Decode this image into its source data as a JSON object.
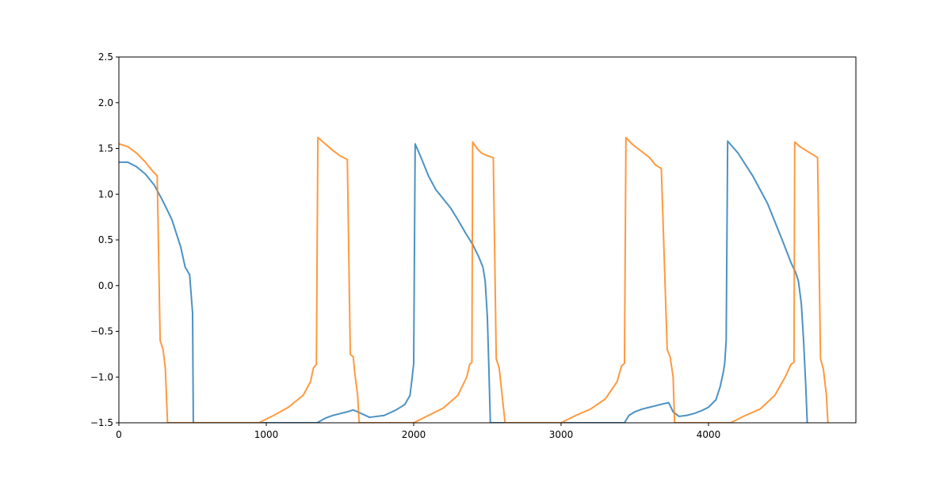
{
  "chart_data": {
    "type": "line",
    "title": "",
    "xlabel": "",
    "ylabel": "",
    "xlim": [
      0,
      5000
    ],
    "ylim": [
      -1.5,
      2.5
    ],
    "x_ticks": [
      0,
      1000,
      2000,
      3000,
      4000
    ],
    "x_tick_labels": [
      "0",
      "1000",
      "2000",
      "3000",
      "4000"
    ],
    "y_ticks": [
      -1.5,
      -1.0,
      -0.5,
      0.0,
      0.5,
      1.0,
      1.5,
      2.0,
      2.5
    ],
    "y_tick_labels": [
      "−1.5",
      "−1.0",
      "−0.5",
      "0.0",
      "0.5",
      "1.0",
      "1.5",
      "2.0",
      "2.5"
    ],
    "grid": false,
    "legend": "none",
    "series": [
      {
        "color": "#1f77b4",
        "alpha": 0.8,
        "x": [
          0,
          60,
          120,
          180,
          240,
          300,
          360,
          420,
          450,
          480,
          500,
          505,
          1345,
          1400,
          1450,
          1500,
          1550,
          1590,
          1620,
          1700,
          1800,
          1880,
          1940,
          1975,
          1990,
          2000,
          2010,
          2050,
          2100,
          2150,
          2200,
          2250,
          2300,
          2350,
          2400,
          2440,
          2470,
          2485,
          2500,
          2510,
          2520,
          3430,
          3460,
          3500,
          3550,
          3600,
          3650,
          3700,
          3730,
          3760,
          3800,
          3850,
          3900,
          3950,
          4000,
          4050,
          4080,
          4100,
          4110,
          4120,
          4130,
          4200,
          4300,
          4400,
          4500,
          4560,
          4590,
          4610,
          4630,
          4645,
          4660,
          4670
        ],
        "y": [
          1.35,
          1.35,
          1.3,
          1.22,
          1.1,
          0.92,
          0.72,
          0.42,
          0.2,
          0.12,
          -0.3,
          -1.5,
          -1.5,
          -1.45,
          -1.42,
          -1.4,
          -1.38,
          -1.36,
          -1.38,
          -1.44,
          -1.42,
          -1.36,
          -1.3,
          -1.2,
          -1.0,
          -0.85,
          1.55,
          1.4,
          1.2,
          1.05,
          0.95,
          0.85,
          0.72,
          0.58,
          0.45,
          0.32,
          0.2,
          0.05,
          -0.35,
          -0.9,
          -1.5,
          -1.5,
          -1.42,
          -1.38,
          -1.35,
          -1.33,
          -1.31,
          -1.29,
          -1.28,
          -1.38,
          -1.43,
          -1.42,
          -1.4,
          -1.37,
          -1.33,
          -1.25,
          -1.1,
          -0.95,
          -0.85,
          -0.6,
          1.58,
          1.45,
          1.2,
          0.9,
          0.5,
          0.25,
          0.15,
          0.05,
          -0.2,
          -0.6,
          -1.1,
          -1.5
        ]
      },
      {
        "color": "#ff7f0e",
        "alpha": 0.8,
        "x": [
          0,
          60,
          120,
          180,
          230,
          260,
          280,
          300,
          315,
          330,
          950,
          1050,
          1150,
          1250,
          1300,
          1320,
          1340,
          1350,
          1400,
          1450,
          1500,
          1550,
          1570,
          1590,
          1600,
          1620,
          1630,
          2000,
          2100,
          2200,
          2300,
          2360,
          2380,
          2395,
          2400,
          2430,
          2460,
          2500,
          2540,
          2560,
          2580,
          2600,
          2620,
          3000,
          3100,
          3200,
          3300,
          3380,
          3410,
          3430,
          3440,
          3480,
          3520,
          3560,
          3600,
          3640,
          3680,
          3720,
          3740,
          3760,
          3770,
          4150,
          4250,
          4350,
          4450,
          4520,
          4560,
          4580,
          4585,
          4620,
          4660,
          4700,
          4740,
          4760,
          4780,
          4800,
          4810
        ],
        "y": [
          1.55,
          1.52,
          1.45,
          1.35,
          1.25,
          1.2,
          -0.6,
          -0.7,
          -0.9,
          -1.5,
          -1.5,
          -1.42,
          -1.33,
          -1.2,
          -1.05,
          -0.9,
          -0.86,
          1.62,
          1.55,
          1.48,
          1.42,
          1.38,
          -0.75,
          -0.78,
          -0.95,
          -1.2,
          -1.5,
          -1.5,
          -1.42,
          -1.34,
          -1.2,
          -1.0,
          -0.86,
          -0.84,
          1.57,
          1.5,
          1.45,
          1.42,
          1.4,
          -0.8,
          -0.9,
          -1.2,
          -1.5,
          -1.5,
          -1.42,
          -1.35,
          -1.24,
          -1.05,
          -0.88,
          -0.85,
          1.62,
          1.55,
          1.5,
          1.45,
          1.4,
          1.32,
          1.28,
          -0.7,
          -0.78,
          -1.0,
          -1.5,
          -1.5,
          -1.42,
          -1.35,
          -1.2,
          -1.0,
          -0.86,
          -0.84,
          1.57,
          1.52,
          1.48,
          1.44,
          1.4,
          -0.8,
          -0.92,
          -1.2,
          -1.5
        ]
      }
    ]
  }
}
